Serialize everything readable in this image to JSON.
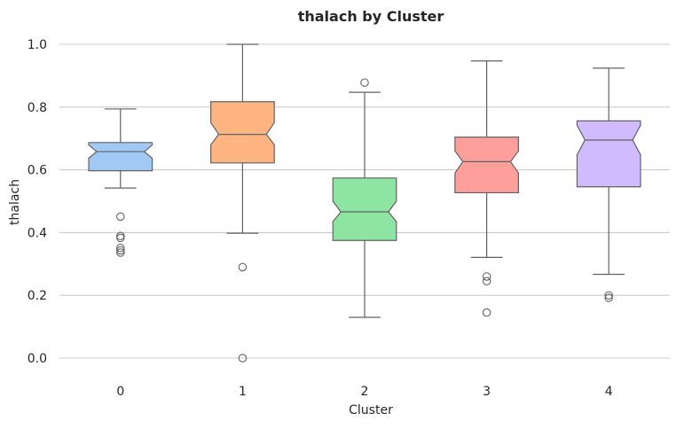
{
  "chart_data": {
    "type": "box",
    "notched": true,
    "title": "thalach by Cluster",
    "xlabel": "Cluster",
    "ylabel": "thalach",
    "ylim": [
      -0.07,
      1.05
    ],
    "yticks": [
      0.0,
      0.2,
      0.4,
      0.6,
      0.8,
      1.0
    ],
    "ytick_labels": [
      "0.0",
      "0.2",
      "0.4",
      "0.6",
      "0.8",
      "1.0"
    ],
    "grid": "horizontal",
    "categories": [
      "0",
      "1",
      "2",
      "3",
      "4"
    ],
    "boxes": [
      {
        "category": "0",
        "whisker_low": 0.542,
        "q1": 0.597,
        "median": 0.658,
        "q3": 0.687,
        "whisker_high": 0.794,
        "notch_low": 0.637,
        "notch_high": 0.679,
        "outliers": [
          0.451,
          0.389,
          0.383,
          0.351,
          0.343,
          0.336
        ],
        "color": "#a1c9f4"
      },
      {
        "category": "1",
        "whisker_low": 0.398,
        "q1": 0.622,
        "median": 0.713,
        "q3": 0.817,
        "whisker_high": 1.0,
        "notch_low": 0.68,
        "notch_high": 0.75,
        "outliers": [
          0.29,
          0.0
        ],
        "color": "#ffb482"
      },
      {
        "category": "2",
        "whisker_low": 0.13,
        "q1": 0.375,
        "median": 0.466,
        "q3": 0.574,
        "whisker_high": 0.847,
        "notch_low": 0.435,
        "notch_high": 0.5,
        "outliers": [
          0.878
        ],
        "color": "#8de5a1"
      },
      {
        "category": "3",
        "whisker_low": 0.321,
        "q1": 0.527,
        "median": 0.626,
        "q3": 0.704,
        "whisker_high": 0.947,
        "notch_low": 0.59,
        "notch_high": 0.66,
        "outliers": [
          0.26,
          0.245,
          0.145
        ],
        "color": "#ff9f9b"
      },
      {
        "category": "4",
        "whisker_low": 0.267,
        "q1": 0.546,
        "median": 0.695,
        "q3": 0.756,
        "whisker_high": 0.924,
        "notch_low": 0.648,
        "notch_high": 0.742,
        "outliers": [
          0.2,
          0.192
        ],
        "color": "#d0bbff"
      }
    ]
  }
}
